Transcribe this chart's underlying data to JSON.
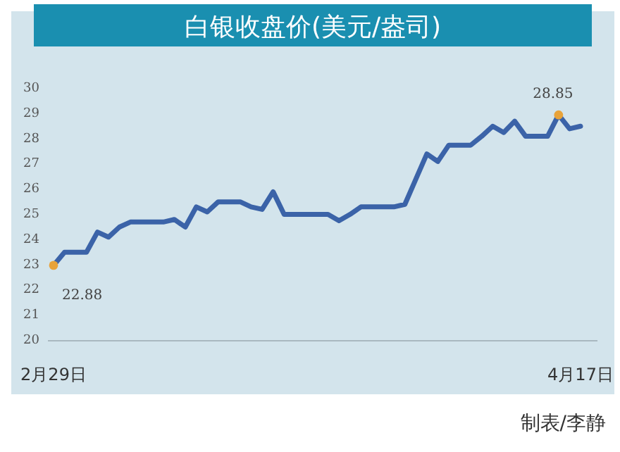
{
  "chart_data": {
    "type": "line",
    "title": "白银收盘价(美元/盎司)",
    "categories": [
      "2月29日",
      null,
      null,
      null,
      null,
      null,
      null,
      null,
      null,
      null,
      null,
      null,
      null,
      null,
      null,
      null,
      null,
      null,
      null,
      null,
      null,
      null,
      null,
      null,
      null,
      null,
      null,
      null,
      null,
      null,
      null,
      null,
      null,
      null,
      null,
      null,
      null,
      null,
      null,
      null,
      null,
      null,
      null,
      null,
      null,
      null,
      null,
      null,
      "4月17日"
    ],
    "series": [
      {
        "color": "#3b63a8",
        "marker": "none",
        "values": [
          22.88,
          23.4,
          23.4,
          23.4,
          24.2,
          24.0,
          24.4,
          24.6,
          24.6,
          24.6,
          24.6,
          24.7,
          24.4,
          25.2,
          25.0,
          25.4,
          25.4,
          25.4,
          25.2,
          25.1,
          25.8,
          24.9,
          24.9,
          24.9,
          24.9,
          24.9,
          24.65,
          24.9,
          25.2,
          25.2,
          25.2,
          25.2,
          25.3,
          26.3,
          27.3,
          27.0,
          27.65,
          27.65,
          27.65,
          28.0,
          28.4,
          28.15,
          28.6,
          28.0,
          28.0,
          28.0,
          28.85,
          28.3,
          28.4
        ]
      },
      {
        "type": "scatter",
        "color": "#e8a33a",
        "marker": "circle",
        "values": [
          22.88,
          null,
          null,
          null,
          null,
          null,
          null,
          null,
          null,
          null,
          null,
          null,
          null,
          null,
          null,
          null,
          null,
          null,
          null,
          null,
          null,
          null,
          null,
          null,
          null,
          null,
          null,
          null,
          null,
          null,
          null,
          null,
          null,
          null,
          null,
          null,
          null,
          null,
          null,
          null,
          null,
          null,
          null,
          null,
          null,
          null,
          28.85,
          null,
          null
        ],
        "value_labels": [
          "22.88",
          null,
          null,
          null,
          null,
          null,
          null,
          null,
          null,
          null,
          null,
          null,
          null,
          null,
          null,
          null,
          null,
          null,
          null,
          null,
          null,
          null,
          null,
          null,
          null,
          null,
          null,
          null,
          null,
          null,
          null,
          null,
          null,
          null,
          null,
          null,
          null,
          null,
          null,
          null,
          null,
          null,
          null,
          null,
          null,
          null,
          "28.85",
          null,
          null
        ]
      }
    ],
    "ylim": [
      20,
      30
    ],
    "yticks": [
      20,
      21,
      22,
      23,
      24,
      25,
      26,
      27,
      28,
      29,
      30
    ],
    "grid": false,
    "annotations": [
      "制表/李静"
    ]
  }
}
